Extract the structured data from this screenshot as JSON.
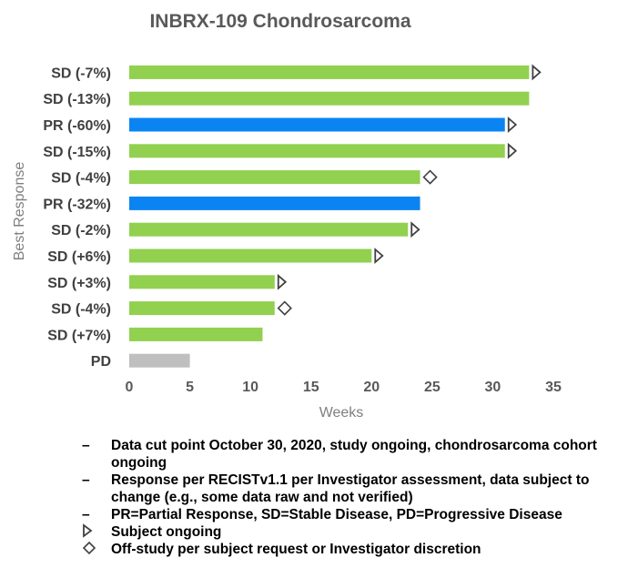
{
  "chart_data": {
    "type": "bar",
    "orientation": "horizontal",
    "title": "INBRX-109 Chondrosarcoma",
    "xlabel": "Weeks",
    "ylabel": "Best Response",
    "xlim": [
      0,
      35
    ],
    "xticks": [
      "0",
      "5",
      "10",
      "15",
      "20",
      "25",
      "30",
      "35"
    ],
    "categories": [
      "SD (-7%)",
      "SD (-13%)",
      "PR (-60%)",
      "SD (-15%)",
      "SD (-4%)",
      "PR (-32%)",
      "SD (-2%)",
      "SD (+6%)",
      "SD (+3%)",
      "SD (-4%)",
      "SD (+7%)",
      "PD"
    ],
    "values": [
      33,
      33,
      31,
      31,
      24,
      24,
      23,
      20,
      12,
      12,
      11,
      5
    ],
    "bar_colors": [
      "#92d050",
      "#92d050",
      "#0b84f3",
      "#92d050",
      "#92d050",
      "#0b84f3",
      "#92d050",
      "#92d050",
      "#92d050",
      "#92d050",
      "#92d050",
      "#bfbfbf"
    ],
    "markers": [
      "ongoing",
      null,
      "ongoing",
      "ongoing",
      "off-study",
      null,
      "ongoing",
      "ongoing",
      "ongoing",
      "off-study",
      null,
      null
    ],
    "grid": false
  },
  "notes": [
    {
      "symbol": "dash",
      "text": "Data cut point October 30, 2020, study ongoing, chondrosarcoma cohort ongoing"
    },
    {
      "symbol": "dash",
      "text": "Response per RECISTv1.1 per Investigator assessment, data subject to change (e.g., some data raw and not verified)"
    },
    {
      "symbol": "dash",
      "text": "PR=Partial Response, SD=Stable Disease, PD=Progressive Disease"
    },
    {
      "symbol": "triangle",
      "text": "Subject ongoing"
    },
    {
      "symbol": "diamond",
      "text": "Off-study per subject request or Investigator discretion"
    }
  ]
}
